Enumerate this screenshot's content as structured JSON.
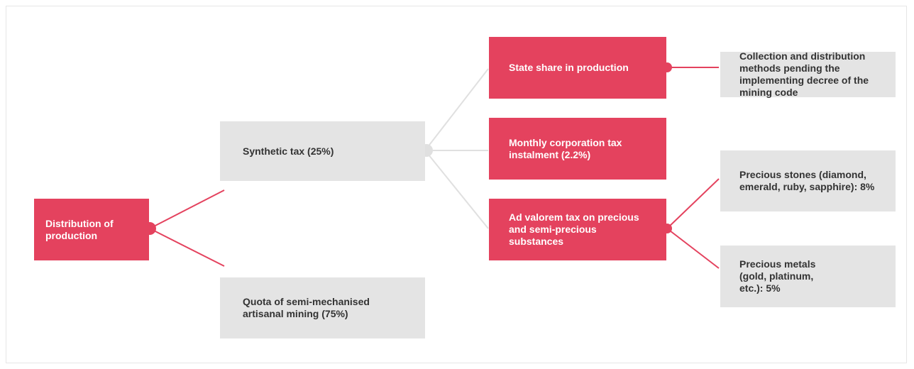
{
  "diagram": {
    "colors": {
      "primary": "#e4425e",
      "secondary": "#e4e4e4",
      "connector_red": "#e4425e",
      "connector_grey": "#e0e0e0",
      "text_on_primary": "#ffffff",
      "text_on_secondary": "#333333"
    },
    "nodes": {
      "root": "Distribution of production",
      "synthetic_tax": "Synthetic tax (25%)",
      "quota": "Quota of semi-mechanised artisanal mining (75%)",
      "state_share": "State share in production",
      "monthly_tax": "Monthly corporation tax instalment (2.2%)",
      "ad_valorem": "Ad valorem tax on precious and semi-precious substances",
      "collection": "Collection and distribution methods pending the implementing decree of the mining code",
      "stones": "Precious stones (diamond, emerald, ruby, sapphire): 8%",
      "metals": "Precious metals (gold, platinum, etc.): 5%"
    }
  }
}
